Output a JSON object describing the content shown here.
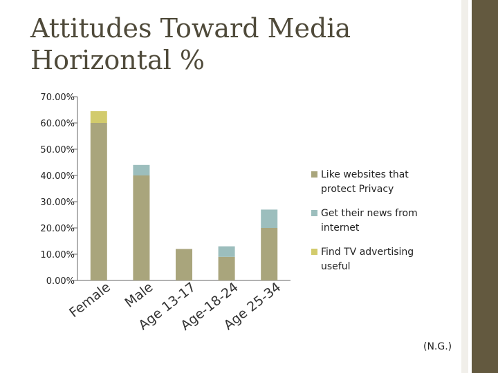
{
  "title_line1": "Attitudes Toward Media",
  "title_line2": "Horizontal %",
  "footnote": "(N.G.)",
  "colors": {
    "band": "#63593f",
    "series": [
      "#a9a57c",
      "#9cbebd",
      "#d2cb6c"
    ]
  },
  "chart_data": {
    "type": "bar",
    "stacked": true,
    "categories": [
      "Female",
      "Male",
      "Age 13-17",
      "Age-18-24",
      "Age 25-34"
    ],
    "series": [
      {
        "name": "Like websites that protect Privacy",
        "values": [
          60,
          40,
          12,
          9,
          20
        ]
      },
      {
        "name": "Get their news from internet",
        "values": [
          0,
          4,
          0,
          4,
          7
        ]
      },
      {
        "name": "Find TV advertising useful",
        "values": [
          4.5,
          0,
          0,
          0,
          0
        ]
      }
    ],
    "ylim": [
      0,
      70
    ],
    "y_ticks": [
      "0.00%",
      "10.00%",
      "20.00%",
      "30.00%",
      "40.00%",
      "50.00%",
      "60.00%",
      "70.00%"
    ],
    "legend_position": "right",
    "grid": false
  }
}
